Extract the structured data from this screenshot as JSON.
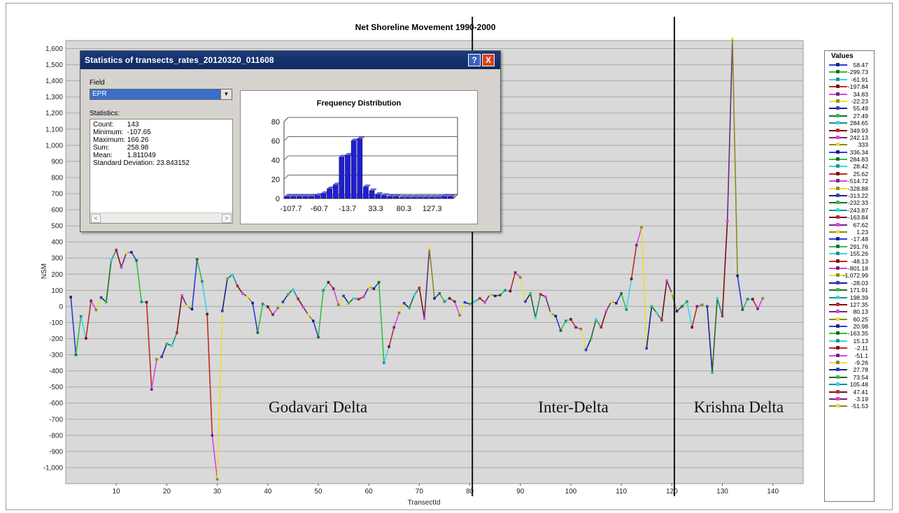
{
  "chart_data": {
    "type": "line",
    "title": "Net Shoreline Movement 1990-2000",
    "xlabel": "TransectId",
    "ylabel": "NSM",
    "xlim": [
      0,
      146
    ],
    "ylim": [
      -1100,
      1650
    ],
    "x_ticks": [
      10,
      20,
      30,
      40,
      50,
      60,
      70,
      80,
      90,
      100,
      110,
      120,
      130,
      140
    ],
    "y_ticks": [
      1600,
      1500,
      1400,
      1300,
      1200,
      1100,
      1000,
      900,
      800,
      700,
      600,
      500,
      400,
      300,
      200,
      100,
      0,
      -100,
      -200,
      -300,
      -400,
      -500,
      -600,
      -700,
      -800,
      -900,
      -1000
    ],
    "y_tick_labels": [
      "1,600",
      "1,500",
      "1,400",
      "1,300",
      "1,200",
      "1,100",
      "1,000",
      "900",
      "800",
      "700",
      "600",
      "500",
      "400",
      "300",
      "200",
      "100",
      "0",
      "-100",
      "-200",
      "-300",
      "-400",
      "-500",
      "-600",
      "-700",
      "-800",
      "-900",
      "-1,000"
    ],
    "grid": true,
    "dividers_x": [
      80.5,
      120.5
    ],
    "region_labels": [
      "Godavari Delta",
      "Inter-Delta",
      "Krishna Delta"
    ],
    "series_values": [
      58,
      -300,
      -62,
      -198,
      35,
      -22,
      55,
      27,
      285,
      350,
      242,
      333,
      336,
      285,
      28,
      26,
      -515,
      -329,
      -313,
      -232,
      -244,
      -164,
      68,
      1,
      -17,
      292,
      155,
      -48,
      -801,
      -1073,
      -28,
      172,
      198,
      127,
      80,
      60,
      21,
      -163,
      15,
      -2,
      -51,
      -9,
      28,
      74,
      105,
      47,
      -3,
      -52,
      -90,
      -190,
      100,
      150,
      110,
      10,
      65,
      20,
      50,
      45,
      60,
      120,
      110,
      150,
      -350,
      -250,
      -130,
      -40,
      20,
      -10,
      70,
      115,
      -75,
      360,
      50,
      80,
      30,
      50,
      30,
      -55,
      25,
      15,
      30,
      50,
      25,
      75,
      65,
      70,
      100,
      95,
      210,
      180,
      30,
      80,
      -70,
      75,
      60,
      -40,
      -60,
      -150,
      -90,
      -80,
      -130,
      -140,
      -270,
      -200,
      -80,
      -130,
      -30,
      30,
      20,
      80,
      -20,
      170,
      380,
      490,
      -260,
      0,
      -40,
      -85,
      160,
      80,
      -30,
      0,
      30,
      -130,
      0,
      10,
      0,
      -410,
      50,
      -60,
      530,
      1660,
      190,
      -20,
      45,
      45,
      -15,
      50
    ],
    "legend_title": "Values",
    "legend_entries": [
      "58.47",
      "-299.73",
      "-61.91",
      "-197.84",
      "34.83",
      "-22.23",
      "55.49",
      "27.49",
      "284.65",
      "349.93",
      "242.13",
      "333",
      "336.34",
      "284.83",
      "28.42",
      "25.62",
      "-514.72",
      "-328.88",
      "-313.22",
      "-232.33",
      "-243.87",
      "-163.84",
      "67.62",
      "1.23",
      "-17.48",
      "291.76",
      "155.26",
      "-48.13",
      "-801.18",
      "-1,072.99",
      "-28.03",
      "171.91",
      "198.39",
      "127.35",
      "80.13",
      "60.25",
      "20.98",
      "-163.35",
      "15.13",
      "-2.11",
      "-51.1",
      "-9.26",
      "27.78",
      "73.54",
      "105.48",
      "47.41",
      "-3.19",
      "-51.53"
    ],
    "legend_colors": [
      "#2a3bd6",
      "#30c040",
      "#30d8e8",
      "#c02828",
      "#e040e0",
      "#e8e030",
      "#1a237e",
      "#1b6b2a",
      "#1f8e8e",
      "#7a1010",
      "#6a2a7a",
      "#8a8a20"
    ]
  },
  "dialog": {
    "title": "Statistics of transects_rates_20120320_011608",
    "help_label": "?",
    "close_label": "X",
    "field_label": "Field",
    "field_value": "EPR",
    "statistics_label": "Statistics:",
    "stats": [
      {
        "key": "Count:",
        "value": "143"
      },
      {
        "key": "Minimum:",
        "value": "-107.65"
      },
      {
        "key": "Maximum:",
        "value": "166.26"
      },
      {
        "key": "Sum:",
        "value": "258.98"
      },
      {
        "key": "Mean:",
        "value": "1.811049"
      },
      {
        "key": "Standard Deviation:",
        "value": "23.843152"
      }
    ]
  },
  "histogram": {
    "type": "bar",
    "title": "Frequency Distribution",
    "values": [
      2,
      2,
      2,
      2,
      2,
      3,
      5,
      10,
      14,
      43,
      45,
      60,
      62,
      12,
      8,
      4,
      3,
      2,
      2,
      1,
      1,
      1,
      1,
      1,
      1,
      1,
      2,
      2
    ],
    "ylim": [
      0,
      80
    ],
    "y_ticks": [
      0,
      20,
      40,
      60,
      80
    ],
    "x_tick_labels": [
      "-107.7",
      "-60.7",
      "-13.7",
      "33.3",
      "80.3",
      "127.3"
    ],
    "bar_color": "#1f1fcf"
  }
}
